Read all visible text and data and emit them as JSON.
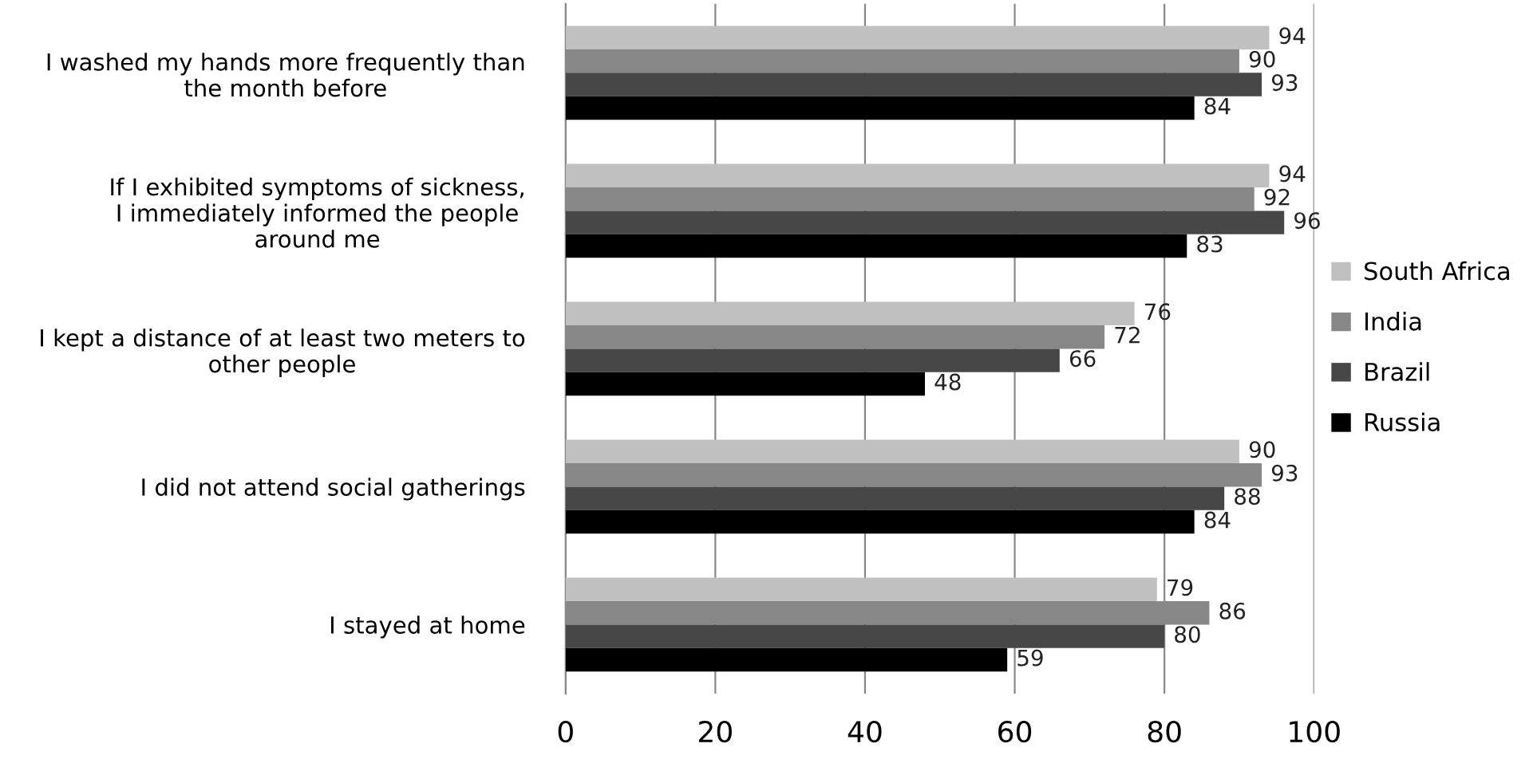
{
  "chart_data": {
    "type": "bar",
    "orientation": "horizontal",
    "categories": [
      "I washed my hands more frequently than\nthe month before",
      "If I exhibited symptoms of sickness,\nI immediately informed the people\naround me",
      "I kept a distance of at least two meters to\nother people",
      "I did not attend social gatherings",
      "I stayed at home"
    ],
    "series": [
      {
        "name": "South Africa",
        "color": "#c0c0c0",
        "values": [
          94,
          94,
          76,
          90,
          79
        ]
      },
      {
        "name": "India",
        "color": "#878787",
        "values": [
          90,
          92,
          72,
          93,
          86
        ]
      },
      {
        "name": "Brazil",
        "color": "#474747",
        "values": [
          93,
          96,
          66,
          88,
          80
        ]
      },
      {
        "name": "Russia",
        "color": "#000000",
        "values": [
          84,
          83,
          48,
          84,
          59
        ]
      }
    ],
    "xlim": [
      0,
      100
    ],
    "xticks": [
      0,
      20,
      40,
      60,
      80,
      100
    ],
    "grid": "x",
    "legend": "right",
    "data_labels": true
  }
}
